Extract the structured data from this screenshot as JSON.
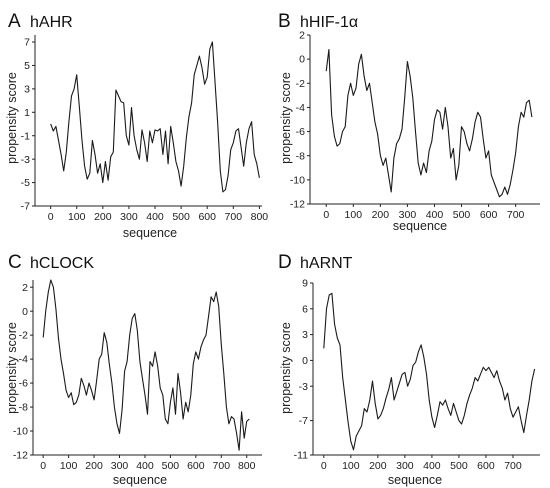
{
  "chart_data": [
    {
      "type": "line",
      "panel_label": "A",
      "title": "hAHR",
      "xlabel": "sequence",
      "ylabel": "propensity score",
      "xlim": [
        -60,
        810
      ],
      "ylim": [
        -7,
        7.6
      ],
      "xticks": [
        0,
        100,
        200,
        300,
        400,
        500,
        600,
        700,
        800
      ],
      "yticks": [
        -7,
        -5,
        -3,
        -1,
        1,
        3,
        5,
        7
      ],
      "x": [
        0,
        10,
        20,
        30,
        40,
        50,
        60,
        70,
        80,
        90,
        100,
        110,
        120,
        130,
        140,
        150,
        160,
        170,
        180,
        190,
        200,
        210,
        220,
        230,
        240,
        250,
        260,
        270,
        280,
        290,
        300,
        310,
        320,
        330,
        340,
        350,
        360,
        370,
        380,
        390,
        400,
        410,
        420,
        430,
        440,
        450,
        460,
        470,
        480,
        490,
        500,
        510,
        520,
        530,
        540,
        550,
        560,
        570,
        580,
        590,
        600,
        610,
        620,
        630,
        640,
        650,
        660,
        670,
        680,
        690,
        700,
        710,
        720,
        730,
        740,
        750,
        760,
        770,
        780,
        790,
        800
      ],
      "y": [
        0.0,
        -0.6,
        -0.2,
        -1.4,
        -2.6,
        -4.0,
        -2.4,
        0.2,
        2.4,
        3.0,
        4.2,
        1.4,
        -1.4,
        -3.6,
        -4.7,
        -4.2,
        -1.4,
        -2.6,
        -4.2,
        -3.4,
        -5.0,
        -3.2,
        -4.8,
        -2.8,
        -2.4,
        2.9,
        2.4,
        1.9,
        1.8,
        -1.0,
        -1.8,
        1.4,
        -1.0,
        -2.2,
        -3.0,
        -0.5,
        -1.6,
        -3.2,
        -0.6,
        -1.6,
        -0.5,
        -0.6,
        -0.4,
        -2.6,
        -0.6,
        -3.4,
        -0.2,
        -1.6,
        -3.2,
        -4.0,
        -5.3,
        -3.6,
        -1.2,
        0.6,
        1.8,
        4.2,
        5.0,
        5.8,
        4.8,
        3.4,
        4.0,
        6.4,
        7.0,
        3.6,
        0.2,
        -4.0,
        -5.8,
        -5.6,
        -4.4,
        -2.2,
        -1.6,
        -0.6,
        -0.4,
        -2.0,
        -3.6,
        -1.6,
        -0.4,
        0.2,
        -2.6,
        -3.4,
        -4.6
      ]
    },
    {
      "type": "line",
      "panel_label": "B",
      "title": "hHIF-1α",
      "xlabel": "sequence",
      "ylabel": "propensity score",
      "xlim": [
        -60,
        790
      ],
      "ylim": [
        -12,
        2
      ],
      "xticks": [
        0,
        100,
        200,
        300,
        400,
        500,
        600,
        700
      ],
      "yticks": [
        -12,
        -10,
        -8,
        -6,
        -4,
        -2,
        0,
        2
      ],
      "x": [
        0,
        10,
        20,
        30,
        40,
        50,
        60,
        70,
        80,
        90,
        100,
        110,
        120,
        130,
        140,
        150,
        160,
        170,
        180,
        190,
        200,
        210,
        220,
        230,
        240,
        250,
        260,
        270,
        280,
        290,
        300,
        310,
        320,
        330,
        340,
        350,
        360,
        370,
        380,
        390,
        400,
        410,
        420,
        430,
        440,
        450,
        460,
        470,
        480,
        490,
        500,
        510,
        520,
        530,
        540,
        550,
        560,
        570,
        580,
        590,
        600,
        610,
        620,
        630,
        640,
        650,
        660,
        670,
        680,
        690,
        700,
        710,
        720,
        730,
        740,
        750,
        760
      ],
      "y": [
        -1.0,
        0.8,
        -4.6,
        -6.4,
        -7.2,
        -7.0,
        -6.0,
        -5.6,
        -3.0,
        -2.0,
        -3.0,
        -2.4,
        -0.4,
        0.4,
        -1.4,
        -2.6,
        -2.0,
        -3.6,
        -5.2,
        -6.2,
        -8.0,
        -8.8,
        -8.2,
        -9.6,
        -11.0,
        -8.2,
        -7.0,
        -6.6,
        -5.8,
        -3.2,
        -0.2,
        -1.4,
        -3.2,
        -6.0,
        -8.6,
        -9.6,
        -8.6,
        -9.4,
        -7.6,
        -6.8,
        -5.0,
        -4.2,
        -4.4,
        -5.8,
        -4.0,
        -5.6,
        -8.2,
        -7.4,
        -10.0,
        -8.8,
        -5.6,
        -6.0,
        -7.0,
        -7.6,
        -6.6,
        -5.2,
        -4.4,
        -4.8,
        -6.6,
        -8.2,
        -7.6,
        -9.6,
        -10.2,
        -10.8,
        -11.4,
        -11.2,
        -10.6,
        -11.2,
        -10.4,
        -9.2,
        -7.8,
        -5.6,
        -4.4,
        -4.8,
        -3.6,
        -3.4,
        -4.8
      ]
    },
    {
      "type": "line",
      "panel_label": "C",
      "title": "hCLOCK",
      "xlabel": "sequence",
      "ylabel": "propensity score",
      "xlim": [
        -40,
        860
      ],
      "ylim": [
        -12,
        2.6
      ],
      "xticks": [
        0,
        100,
        200,
        300,
        400,
        500,
        600,
        700,
        800
      ],
      "yticks": [
        -12,
        -10,
        -8,
        -6,
        -4,
        -2,
        0,
        2
      ],
      "x": [
        0,
        10,
        20,
        30,
        40,
        50,
        60,
        70,
        80,
        90,
        100,
        110,
        120,
        130,
        140,
        150,
        160,
        170,
        180,
        190,
        200,
        210,
        220,
        230,
        240,
        250,
        260,
        270,
        280,
        290,
        300,
        310,
        320,
        330,
        340,
        350,
        360,
        370,
        380,
        390,
        400,
        410,
        420,
        430,
        440,
        450,
        460,
        470,
        480,
        490,
        500,
        510,
        520,
        530,
        540,
        550,
        560,
        570,
        580,
        590,
        600,
        610,
        620,
        630,
        640,
        650,
        660,
        670,
        680,
        690,
        700,
        710,
        720,
        730,
        740,
        750,
        760,
        770,
        780,
        790,
        800,
        810
      ],
      "y": [
        -2.2,
        0.0,
        1.6,
        2.6,
        2.0,
        0.2,
        -2.2,
        -4.0,
        -5.2,
        -6.6,
        -7.2,
        -6.8,
        -7.8,
        -7.6,
        -7.0,
        -5.6,
        -6.2,
        -7.0,
        -6.0,
        -6.6,
        -7.4,
        -5.8,
        -4.0,
        -3.6,
        -1.8,
        -2.6,
        -4.4,
        -6.0,
        -8.0,
        -9.4,
        -10.2,
        -8.2,
        -5.0,
        -4.2,
        -2.0,
        -0.6,
        -0.2,
        -1.6,
        -4.2,
        -5.6,
        -7.0,
        -8.6,
        -4.2,
        -4.6,
        -3.4,
        -4.6,
        -6.4,
        -7.0,
        -9.0,
        -9.4,
        -7.6,
        -6.4,
        -8.6,
        -5.2,
        -6.8,
        -9.0,
        -7.6,
        -8.4,
        -7.0,
        -4.4,
        -3.4,
        -4.0,
        -3.0,
        -2.4,
        -2.0,
        -0.4,
        1.2,
        0.8,
        1.6,
        0.4,
        -2.8,
        -5.2,
        -8.0,
        -9.4,
        -8.8,
        -9.0,
        -10.2,
        -11.6,
        -8.4,
        -10.6,
        -9.2,
        -9.0
      ]
    },
    {
      "type": "line",
      "panel_label": "D",
      "title": "hARNT",
      "xlabel": "sequence",
      "ylabel": "propensity score",
      "xlim": [
        -40,
        800
      ],
      "ylim": [
        -11,
        9
      ],
      "xticks": [
        0,
        100,
        200,
        300,
        400,
        500,
        600,
        700
      ],
      "yticks": [
        -11,
        -7,
        -3,
        0,
        3,
        6,
        9
      ],
      "x": [
        0,
        10,
        20,
        30,
        40,
        50,
        60,
        70,
        80,
        90,
        100,
        110,
        120,
        130,
        140,
        150,
        160,
        170,
        180,
        190,
        200,
        210,
        220,
        230,
        240,
        250,
        260,
        270,
        280,
        290,
        300,
        310,
        320,
        330,
        340,
        350,
        360,
        370,
        380,
        390,
        400,
        410,
        420,
        430,
        440,
        450,
        460,
        470,
        480,
        490,
        500,
        510,
        520,
        530,
        540,
        550,
        560,
        570,
        580,
        590,
        600,
        610,
        620,
        630,
        640,
        650,
        660,
        670,
        680,
        690,
        700,
        710,
        720,
        730,
        740,
        750,
        760,
        770,
        780
      ],
      "y": [
        1.4,
        6.0,
        7.6,
        7.8,
        4.2,
        2.6,
        1.8,
        -2.0,
        -4.6,
        -7.2,
        -9.4,
        -10.4,
        -8.8,
        -8.2,
        -7.6,
        -5.6,
        -6.0,
        -4.6,
        -2.4,
        -5.0,
        -6.8,
        -6.4,
        -5.6,
        -4.4,
        -3.4,
        -2.0,
        -4.6,
        -3.6,
        -2.6,
        -1.6,
        -1.4,
        -3.0,
        -2.2,
        -0.6,
        -0.2,
        1.0,
        1.8,
        0.4,
        -1.6,
        -4.6,
        -6.6,
        -7.8,
        -6.4,
        -4.8,
        -5.2,
        -4.6,
        -5.6,
        -6.4,
        -5.0,
        -6.0,
        -7.0,
        -7.4,
        -6.4,
        -5.0,
        -4.0,
        -3.2,
        -2.0,
        -2.4,
        -1.6,
        -0.8,
        -1.2,
        -0.8,
        -1.4,
        -2.0,
        -1.2,
        -2.4,
        -3.2,
        -4.6,
        -3.8,
        -5.6,
        -6.6,
        -6.0,
        -5.4,
        -7.0,
        -8.4,
        -6.4,
        -4.6,
        -2.4,
        -1.0
      ]
    }
  ]
}
